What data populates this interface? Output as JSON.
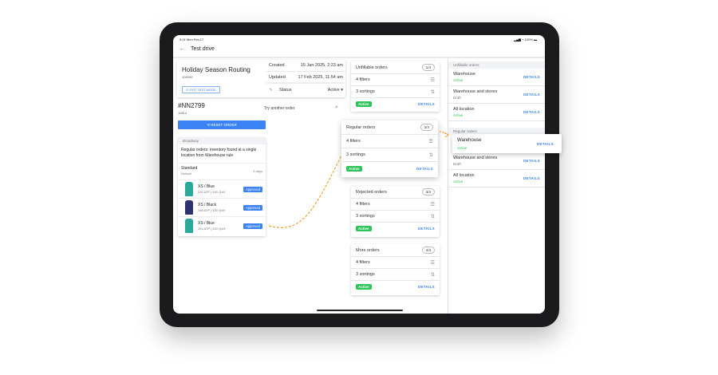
{
  "status_bar": {
    "time": "9:41  Mon Feb 17",
    "battery": "100%"
  },
  "header": {
    "title": "Test drive"
  },
  "routing": {
    "title": "Holiday Season Routing",
    "id": "100000",
    "exit_label": "EXIT TEST MODE",
    "created_label": "Created",
    "created": "15 Jan 2025, 2:23 am",
    "updated_label": "Updated",
    "updated": "17 Feb 2025, 11:54 am",
    "status_label": "Status",
    "status": "Active"
  },
  "order": {
    "number": "#NN2799",
    "id": "10814",
    "search_placeholder": "Try another order",
    "reset_label": "RESET ORDER",
    "location": "Broadway",
    "message": "Regular orders: inventory found at a single location from Warehouse rule",
    "shipping": "Standard",
    "shipping_sub": "Default",
    "shipping_time": "4 days",
    "items": [
      {
        "name": "XS / Blue",
        "stock": "200 ATP | 200 QoH",
        "status": "Approved",
        "color": "#2aa89a"
      },
      {
        "name": "XS / Black",
        "stock": "146 ATP | 150 QoH",
        "status": "Approved",
        "color": "#2b3370"
      },
      {
        "name": "XS / Blue",
        "stock": "194 ATP | 200 QoH",
        "status": "Approved",
        "color": "#2aa89a"
      }
    ]
  },
  "rules": [
    {
      "name": "Unfillable orders",
      "seq": "1/4",
      "filters": "4 filters",
      "sortings": "3 sortings",
      "status": "Active",
      "details": "DETAILS"
    },
    {
      "name": "Regular orders",
      "seq": "2/4",
      "filters": "4 filters",
      "sortings": "3 sortings",
      "status": "Active",
      "details": "DETAILS"
    },
    {
      "name": "Rejected orders",
      "seq": "3/4",
      "filters": "4 filters",
      "sortings": "3 sortings",
      "status": "Active",
      "details": "DETAILS"
    },
    {
      "name": "More orders",
      "seq": "4/4",
      "filters": "4 filters",
      "sortings": "3 sortings",
      "status": "Active",
      "details": "DETAILS"
    }
  ],
  "right_panel": {
    "sections": [
      {
        "title": "Unfillable orders",
        "items": [
          {
            "name": "Warehouse",
            "status": "Active"
          },
          {
            "name": "Warehouse and stores",
            "status": "Draft"
          },
          {
            "name": "All location",
            "status": "Active"
          }
        ]
      },
      {
        "title": "Regular orders",
        "items": [
          {
            "name": "Warehouse",
            "status": "Active"
          },
          {
            "name": "Warehouse and stores",
            "status": "Draft"
          },
          {
            "name": "All location",
            "status": "Active"
          }
        ]
      }
    ],
    "details": "DETAILS"
  },
  "colors": {
    "accent": "#3b82f6",
    "active": "#2dc45a",
    "arrow": "#f59e2b"
  }
}
